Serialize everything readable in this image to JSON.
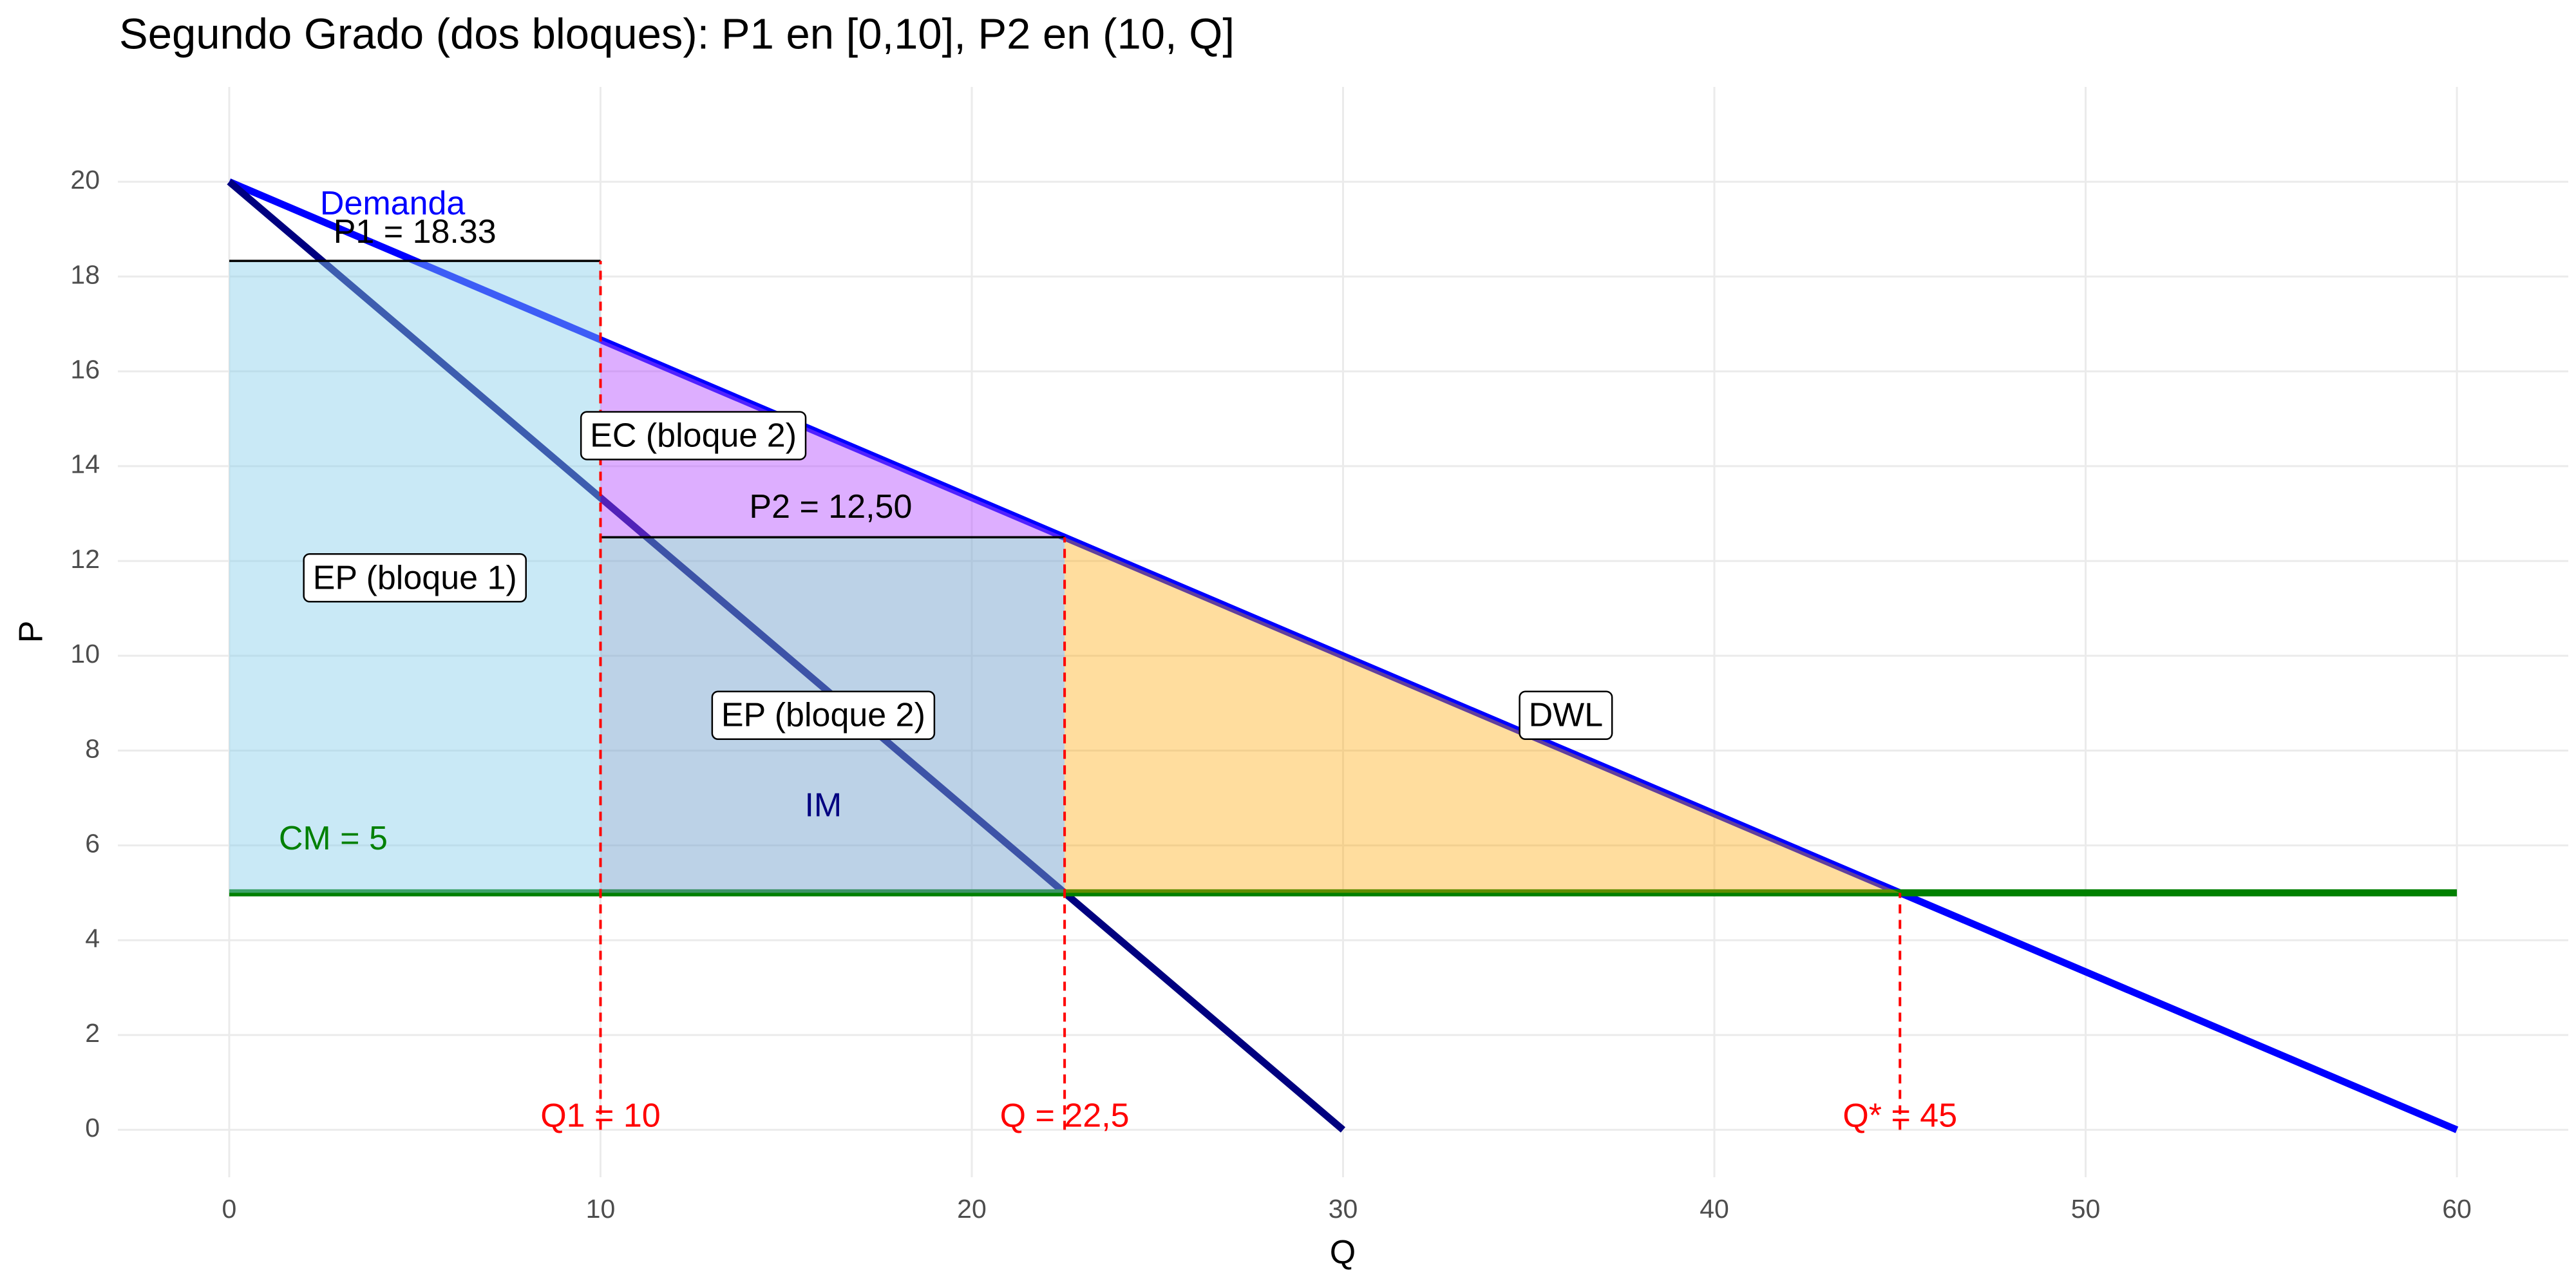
{
  "chart_data": {
    "type": "line",
    "title": "Segundo Grado (dos bloques): P1 en [0,10],  P2 en (10, Q]",
    "x_label": "Q",
    "y_label": "P",
    "xlim": [
      -3,
      63
    ],
    "ylim": [
      -1,
      22
    ],
    "xticks": [
      0,
      10,
      20,
      30,
      40,
      50,
      60
    ],
    "yticks": [
      0,
      2,
      4,
      6,
      8,
      10,
      12,
      14,
      16,
      18,
      20
    ],
    "grid": true,
    "areas": [
      {
        "x": [
          0,
          10,
          10,
          0
        ],
        "y": [
          5,
          5,
          18.33,
          18.33
        ],
        "color": "#87ceeb",
        "opacity": 0.45
      },
      {
        "x": [
          10,
          22.5,
          10
        ],
        "y": [
          12.5,
          12.5,
          16.67
        ],
        "color": "#b44cff",
        "opacity": 0.45
      },
      {
        "x": [
          10,
          22.5,
          22.5,
          10
        ],
        "y": [
          5,
          5,
          12.5,
          12.5
        ],
        "color": "#7aa6cf",
        "opacity": 0.5
      },
      {
        "x": [
          22.5,
          45,
          22.5
        ],
        "y": [
          5,
          5,
          12.5
        ],
        "color": "#ffa500",
        "opacity": 0.38
      }
    ],
    "series": [
      {
        "x": [
          0,
          60
        ],
        "values": [
          20,
          0
        ],
        "color": "#0000ff"
      },
      {
        "x": [
          0,
          30
        ],
        "values": [
          20,
          0
        ],
        "color": "#00007f"
      },
      {
        "x": [
          0,
          60
        ],
        "values": [
          5,
          5
        ],
        "color": "#008000"
      }
    ],
    "segments": [
      {
        "x": [
          0,
          10
        ],
        "y": [
          18.33,
          18.33
        ],
        "color": "#000000",
        "dashed": false
      },
      {
        "x": [
          10,
          22.5
        ],
        "y": [
          12.5,
          12.5
        ],
        "color": "#000000",
        "dashed": false
      },
      {
        "x": [
          10,
          10
        ],
        "y": [
          0,
          18.33
        ],
        "color": "#ff0000",
        "dashed": true
      },
      {
        "x": [
          22.5,
          22.5
        ],
        "y": [
          0,
          12.5
        ],
        "color": "#ff0000",
        "dashed": true
      },
      {
        "x": [
          45,
          45
        ],
        "y": [
          0,
          5
        ],
        "color": "#ff0000",
        "dashed": true
      }
    ],
    "annotations": [
      {
        "text": "Demanda",
        "x": 4.4,
        "y": 19.5,
        "color": "#0000ff",
        "box": false
      },
      {
        "text": "P1 = 18.33",
        "x": 5,
        "y": 18.9,
        "color": "#000000",
        "box": false
      },
      {
        "text": "EC (bloque 2)",
        "x": 12.5,
        "y": 14.6,
        "color": "#000000",
        "box": true
      },
      {
        "text": "P2 = 12,50",
        "x": 16.2,
        "y": 13.1,
        "color": "#000000",
        "box": false
      },
      {
        "text": "EP (bloque 1)",
        "x": 5,
        "y": 11.6,
        "color": "#000000",
        "box": true
      },
      {
        "text": "EP (bloque 2)",
        "x": 16,
        "y": 8.7,
        "color": "#000000",
        "box": true
      },
      {
        "text": "DWL",
        "x": 36,
        "y": 8.7,
        "color": "#000000",
        "box": true
      },
      {
        "text": "IM",
        "x": 16,
        "y": 6.8,
        "color": "#000080",
        "box": false
      },
      {
        "text": "CM = 5",
        "x": 2.8,
        "y": 6.1,
        "color": "#008000",
        "box": false
      },
      {
        "text": "Q1 = 10",
        "x": 10,
        "y": 0.25,
        "color": "#ff0000",
        "box": false
      },
      {
        "text": "Q = 22,5",
        "x": 22.5,
        "y": 0.25,
        "color": "#ff0000",
        "box": false
      },
      {
        "text": "Q* = 45",
        "x": 45,
        "y": 0.25,
        "color": "#ff0000",
        "box": false
      }
    ]
  }
}
